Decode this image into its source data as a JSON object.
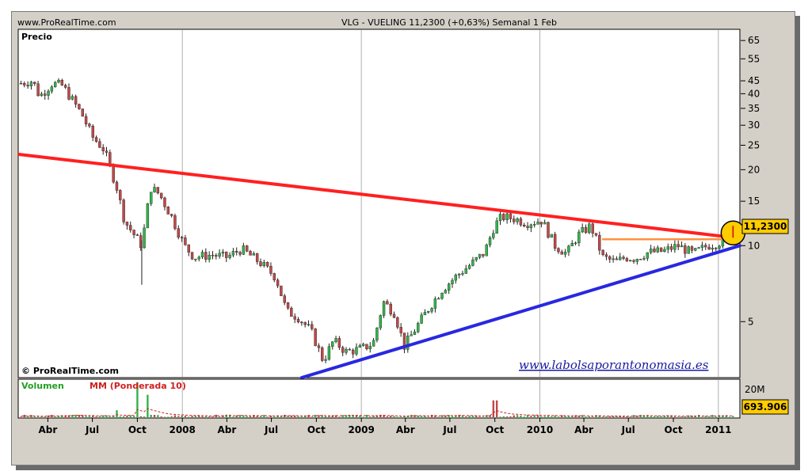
{
  "header": {
    "site": "www.ProRealTime.com",
    "title": "VLG - VUELING     11,2300 (+0,63%)    Semanal  1 Feb"
  },
  "price_panel": {
    "label": "Precio",
    "copyright": "© ProRealTime.com",
    "watermark": "www.labolsaporantonomasia.es",
    "last_price_badge": "11,2300"
  },
  "volume_panel": {
    "label_green": "Volumen",
    "label_red": "MM (Ponderada 10)",
    "axis_tick": "20M",
    "last_volume_badge": "693.906"
  },
  "colors": {
    "up_candle": "#33b34a",
    "down_candle": "#c04848",
    "resistance": "#ff2020",
    "support": "#2828e0",
    "horizontal": "#ff9040",
    "badge": "#ffcc00"
  },
  "chart_data": [
    {
      "type": "candlestick",
      "panel": "price",
      "scale": "log",
      "y_ticks": [
        5,
        10,
        15,
        20,
        25,
        30,
        35,
        40,
        45,
        55,
        65
      ],
      "ylim": [
        3.0,
        72
      ],
      "x_tick_labels": [
        "Abr",
        "Jul",
        "Oct",
        "2008",
        "Abr",
        "Jul",
        "Oct",
        "2009",
        "Abr",
        "Jul",
        "Oct",
        "2010",
        "Abr",
        "Jul",
        "Oct",
        "2011"
      ],
      "x_tick_dates": [
        "2007-04-01",
        "2007-07-01",
        "2007-10-01",
        "2008-01-01",
        "2008-04-01",
        "2008-07-01",
        "2008-10-01",
        "2009-01-01",
        "2009-04-01",
        "2009-07-01",
        "2009-10-01",
        "2010-01-01",
        "2010-04-01",
        "2010-07-01",
        "2010-10-01",
        "2011-01-01"
      ],
      "x_range": [
        "2007-02-01",
        "2011-02-14"
      ],
      "close_path": [
        [
          "2007-02-05",
          44
        ],
        [
          "2007-03-01",
          45
        ],
        [
          "2007-03-15",
          39
        ],
        [
          "2007-04-10",
          44
        ],
        [
          "2007-05-01",
          43
        ],
        [
          "2007-05-20",
          38
        ],
        [
          "2007-06-10",
          33
        ],
        [
          "2007-07-01",
          27
        ],
        [
          "2007-07-25",
          24
        ],
        [
          "2007-08-20",
          17
        ],
        [
          "2007-09-05",
          12.5
        ],
        [
          "2007-09-25",
          11
        ],
        [
          "2007-10-10",
          10
        ],
        [
          "2007-10-28",
          17
        ],
        [
          "2007-11-15",
          16
        ],
        [
          "2007-12-10",
          13
        ],
        [
          "2008-01-05",
          10
        ],
        [
          "2008-01-25",
          9
        ],
        [
          "2008-03-01",
          9.2
        ],
        [
          "2008-04-01",
          9
        ],
        [
          "2008-05-01",
          9.7
        ],
        [
          "2008-06-10",
          8.5
        ],
        [
          "2008-07-10",
          7.5
        ],
        [
          "2008-08-01",
          5.5
        ],
        [
          "2008-08-25",
          5.2
        ],
        [
          "2008-09-20",
          4.6
        ],
        [
          "2008-10-15",
          3.5
        ],
        [
          "2008-11-05",
          4.2
        ],
        [
          "2008-12-01",
          3.8
        ],
        [
          "2009-01-01",
          3.9
        ],
        [
          "2009-01-25",
          4.1
        ],
        [
          "2009-02-15",
          6.0
        ],
        [
          "2009-03-10",
          5.4
        ],
        [
          "2009-03-30",
          4.0
        ],
        [
          "2009-04-25",
          4.8
        ],
        [
          "2009-05-20",
          5.7
        ],
        [
          "2009-06-15",
          6.7
        ],
        [
          "2009-07-15",
          7.6
        ],
        [
          "2009-08-15",
          8.5
        ],
        [
          "2009-09-10",
          9.4
        ],
        [
          "2009-09-30",
          12.0
        ],
        [
          "2009-10-15",
          13.0
        ],
        [
          "2009-11-10",
          12.8
        ],
        [
          "2009-12-05",
          12.3
        ],
        [
          "2010-01-05",
          12.6
        ],
        [
          "2010-02-01",
          10.0
        ],
        [
          "2010-02-25",
          9.3
        ],
        [
          "2010-03-20",
          11.0
        ],
        [
          "2010-04-15",
          12.0
        ],
        [
          "2010-05-10",
          9.0
        ],
        [
          "2010-06-05",
          8.6
        ],
        [
          "2010-06-25",
          9.0
        ],
        [
          "2010-07-15",
          8.9
        ],
        [
          "2010-08-10",
          9.4
        ],
        [
          "2010-09-10",
          9.5
        ],
        [
          "2010-10-10",
          10.0
        ],
        [
          "2010-11-10",
          9.3
        ],
        [
          "2010-12-10",
          10.0
        ],
        [
          "2011-01-10",
          10.4
        ],
        [
          "2011-01-31",
          11.23
        ]
      ],
      "trendlines": [
        {
          "color": "red",
          "from": [
            "2007-02-01",
            23.0
          ],
          "to": [
            "2011-02-14",
            10.7
          ]
        },
        {
          "color": "blue",
          "from": [
            "2008-09-01",
            3.0
          ],
          "to": [
            "2011-02-14",
            10.0
          ]
        },
        {
          "color": "orange",
          "from": [
            "2010-05-10",
            10.6
          ],
          "to": [
            "2011-02-10",
            10.6
          ]
        }
      ],
      "last_price": 11.23,
      "change_pct": 0.63
    },
    {
      "type": "bar",
      "panel": "volume",
      "series": [
        {
          "name": "Volumen",
          "values_approx": "volumen semanal"
        },
        {
          "name": "MM (Ponderada 10)",
          "values_approx": "media ponderada 10"
        }
      ],
      "y_ticks": [
        20000000
      ],
      "last_value": 693906,
      "spikes": [
        [
          "2007-10-01",
          25000000
        ],
        [
          "2007-10-22",
          16000000
        ],
        [
          "2009-10-01",
          12000000
        ],
        [
          "2007-08-20",
          5000000
        ]
      ]
    }
  ]
}
